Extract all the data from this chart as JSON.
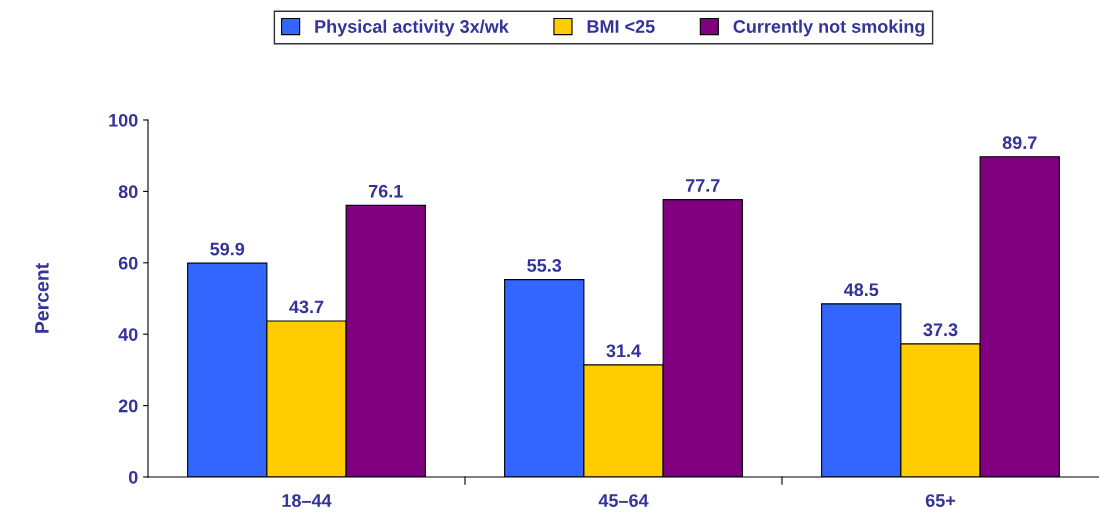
{
  "chart_data": {
    "type": "bar",
    "ylabel": "Percent",
    "categories": [
      "18–44",
      "45–64",
      "65+"
    ],
    "series": [
      {
        "name": "Physical activity 3x/wk",
        "color": "#3366ff",
        "values": [
          59.9,
          55.3,
          48.5
        ]
      },
      {
        "name": "BMI <25",
        "color": "#ffcc00",
        "values": [
          43.7,
          31.4,
          37.3
        ]
      },
      {
        "name": "Currently not smoking",
        "color": "#800080",
        "values": [
          76.1,
          77.7,
          89.7
        ]
      }
    ],
    "ylim": [
      0,
      100
    ],
    "yticks": [
      0,
      20,
      40,
      60,
      80,
      100
    ],
    "data_labels": true,
    "legend": "top",
    "grid": false
  }
}
